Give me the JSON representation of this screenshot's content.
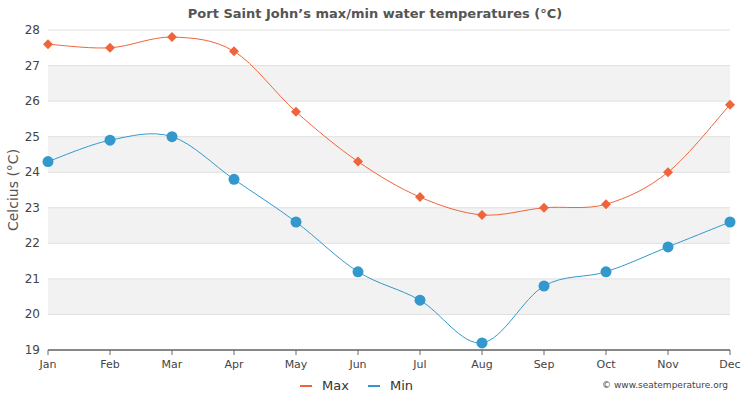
{
  "chart_data": {
    "type": "line",
    "title": "Port Saint John’s max/min water temperatures (°C)",
    "y_label": "Celcius (°C)",
    "annotations": [
      "© www.seatemperature.org"
    ],
    "categories": [
      "Jan",
      "Feb",
      "Mar",
      "Apr",
      "May",
      "Jun",
      "Jul",
      "Aug",
      "Sep",
      "Oct",
      "Nov",
      "Dec"
    ],
    "series": [
      {
        "name": "Max",
        "color": "#f0643c",
        "marker": "diamond",
        "values": [
          27.6,
          27.5,
          27.8,
          27.4,
          25.7,
          24.3,
          23.3,
          22.8,
          23.0,
          23.1,
          24.0,
          25.9
        ]
      },
      {
        "name": "Min",
        "color": "#3399cc",
        "marker": "circle",
        "values": [
          24.3,
          24.9,
          25.0,
          23.8,
          22.6,
          21.2,
          20.4,
          19.2,
          20.8,
          21.2,
          21.9,
          22.6
        ]
      }
    ],
    "ylim": [
      19,
      28
    ],
    "yticks": [
      19,
      20,
      21,
      22,
      23,
      24,
      25,
      26,
      27,
      28
    ],
    "grid": true,
    "legend": "bottom"
  }
}
